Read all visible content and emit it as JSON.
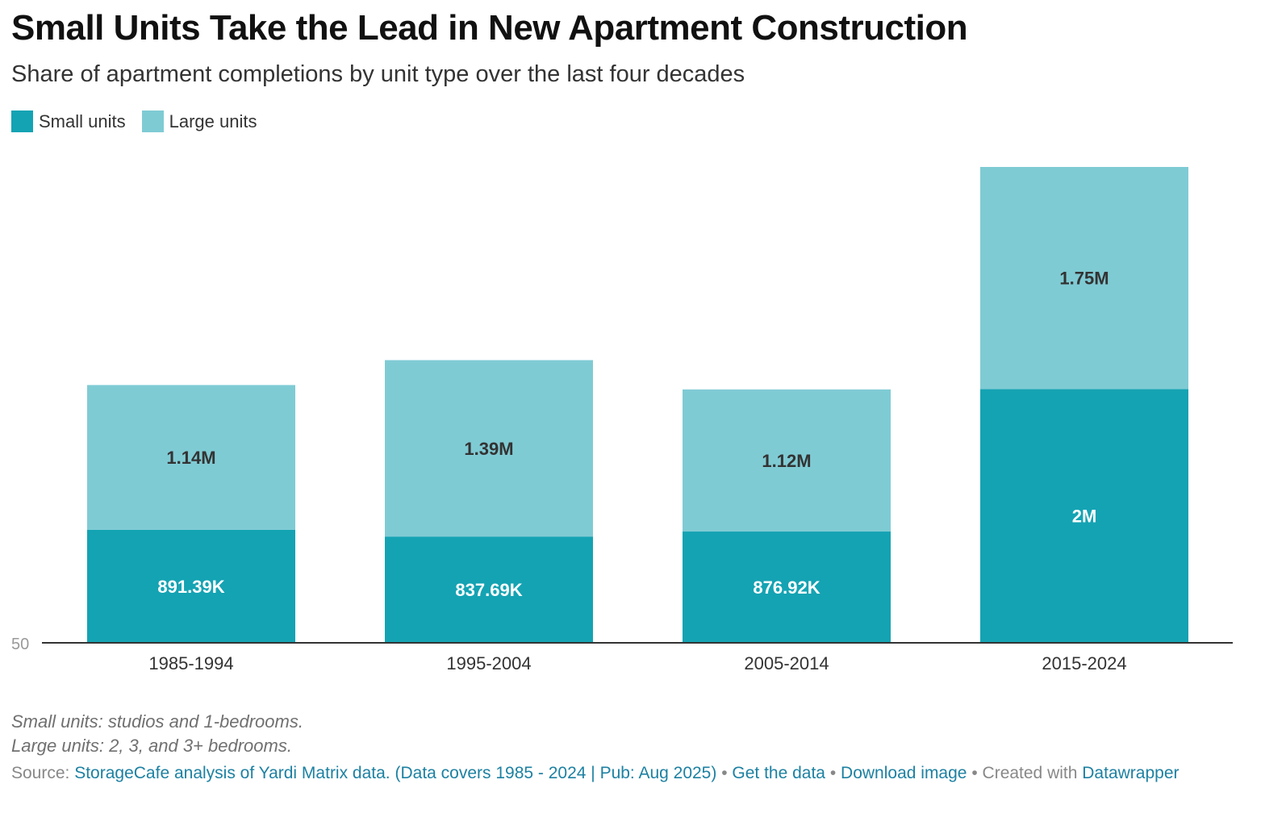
{
  "title": "Small Units Take the Lead in New Apartment Construction",
  "subtitle": "Share of apartment completions by unit type over the last four decades",
  "legend": [
    {
      "label": "Small units",
      "color": "#14a3b3"
    },
    {
      "label": "Large units",
      "color": "#7fcbd4"
    }
  ],
  "chart_data": {
    "type": "stacked-bar",
    "categories": [
      "1985-1994",
      "1995-2004",
      "2005-2014",
      "2015-2024"
    ],
    "series": [
      {
        "name": "Small units",
        "color": "#14a3b3",
        "values": [
          891390,
          837690,
          876920,
          2000000
        ],
        "labels": [
          "891.39K",
          "837.69K",
          "876.92K",
          "2M"
        ],
        "label_color": "#ffffff"
      },
      {
        "name": "Large units",
        "color": "#7fcbd4",
        "values": [
          1140000,
          1390000,
          1120000,
          1750000
        ],
        "labels": [
          "1.14M",
          "1.39M",
          "1.12M",
          "1.75M"
        ],
        "label_color": "#333333"
      }
    ],
    "y_axis_tick": "50",
    "xlabel": "",
    "ylabel": ""
  },
  "notes": [
    "Small units: studios and 1-bedrooms.",
    "Large units: 2, 3, and 3+ bedrooms."
  ],
  "footer": {
    "source_prefix": "Source: ",
    "source_text": "StorageCafe analysis of Yardi Matrix data. (Data covers 1985 - 2024 | Pub: Aug 2025)",
    "get_data": "Get the data",
    "download_image": "Download image",
    "created_with": "Created with",
    "datawrapper": "Datawrapper",
    "separator": "•"
  }
}
